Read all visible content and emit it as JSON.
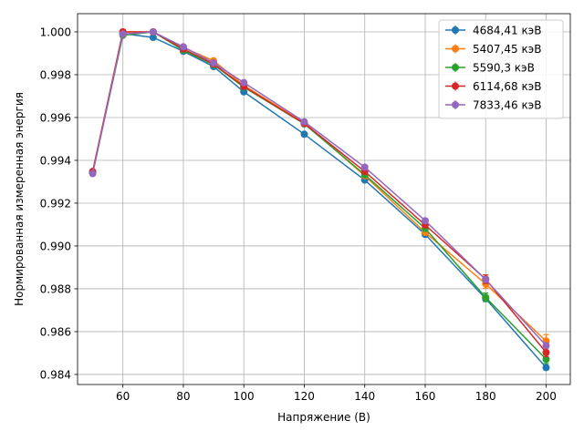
{
  "chart_data": {
    "type": "line",
    "title": "",
    "xlabel": "Напряжение (В)",
    "ylabel": "Нормированная измеренная энергия",
    "xlim": [
      45,
      208
    ],
    "ylim": [
      0.98353,
      1.00085
    ],
    "x_ticks": [
      60,
      80,
      100,
      120,
      140,
      160,
      180,
      200
    ],
    "y_ticks": [
      0.984,
      0.986,
      0.988,
      0.99,
      0.992,
      0.994,
      0.996,
      0.998,
      1.0
    ],
    "x_tick_labels": [
      "60",
      "80",
      "100",
      "120",
      "140",
      "160",
      "180",
      "200"
    ],
    "y_tick_labels": [
      "0.984",
      "0.986",
      "0.988",
      "0.990",
      "0.992",
      "0.994",
      "0.996",
      "0.998",
      "1.000"
    ],
    "grid": true,
    "legend_position": "top-right",
    "x": [
      50,
      60,
      70,
      80,
      90,
      100,
      120,
      140,
      160,
      180,
      200
    ],
    "series": [
      {
        "name": "4684,41 кэВ",
        "color": "#1f77b4",
        "values": [
          0.99345,
          0.99992,
          0.99974,
          0.99909,
          0.99838,
          0.9972,
          0.99522,
          0.99308,
          0.99054,
          0.98754,
          0.98432
        ],
        "errors": [
          5e-05,
          5e-05,
          5e-05,
          5e-05,
          5e-05,
          5e-05,
          5e-05,
          5e-05,
          5e-05,
          8e-05,
          0.0001
        ]
      },
      {
        "name": "5407,45 кэВ",
        "color": "#ff7f0e",
        "values": [
          0.99346,
          1.0,
          1.0,
          0.99927,
          0.99865,
          0.9975,
          0.99575,
          0.99328,
          0.99063,
          0.98823,
          0.98556
        ],
        "errors": [
          5e-05,
          5e-05,
          5e-05,
          5e-05,
          5e-05,
          5e-05,
          5e-05,
          8e-05,
          8e-05,
          0.0002,
          0.0003
        ]
      },
      {
        "name": "5590,3 кэВ",
        "color": "#2ca02c",
        "values": [
          0.99342,
          0.99984,
          1.0,
          0.99914,
          0.99847,
          0.99742,
          0.9957,
          0.99333,
          0.99082,
          0.9876,
          0.98471
        ],
        "errors": [
          5e-05,
          5e-05,
          5e-05,
          5e-05,
          5e-05,
          5e-05,
          5e-05,
          8e-05,
          8e-05,
          0.0002,
          0.0002
        ]
      },
      {
        "name": "6114,68 кэВ",
        "color": "#d62728",
        "values": [
          0.99348,
          1.0,
          1.0,
          0.9992,
          0.9985,
          0.99745,
          0.99572,
          0.99348,
          0.99098,
          0.98845,
          0.98503
        ],
        "errors": [
          5e-05,
          5e-05,
          5e-05,
          5e-05,
          5e-05,
          5e-05,
          5e-05,
          8e-05,
          8e-05,
          0.0002,
          0.0002
        ]
      },
      {
        "name": "7833,46 кэВ",
        "color": "#9467bd",
        "values": [
          0.99338,
          0.9999,
          1.0,
          0.9993,
          0.99855,
          0.99763,
          0.9958,
          0.99368,
          0.99118,
          0.98843,
          0.98535
        ],
        "errors": [
          5e-05,
          5e-05,
          5e-05,
          5e-05,
          5e-05,
          5e-05,
          5e-05,
          8e-05,
          8e-05,
          0.0001,
          0.0001
        ]
      }
    ]
  }
}
